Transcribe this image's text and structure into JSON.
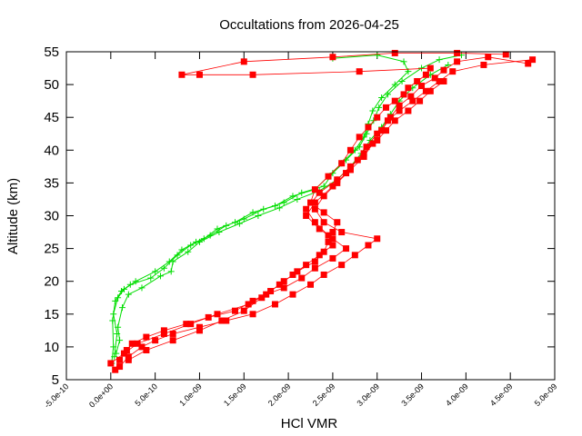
{
  "chart_data": {
    "type": "scatter",
    "title": "Occultations from 2026-04-25",
    "xlabel": "HCl VMR",
    "ylabel": "Altitude (km)",
    "xlim": [
      -5e-10,
      5e-09
    ],
    "ylim": [
      5,
      55
    ],
    "x_ticks": [
      -5e-10,
      0.0,
      5e-10,
      1e-09,
      1.5e-09,
      2e-09,
      2.5e-09,
      3e-09,
      3.5e-09,
      4e-09,
      4.5e-09,
      5e-09
    ],
    "x_tick_labels": [
      "-5.0e-10",
      "0.0e+00",
      "5.0e-10",
      "1.0e-09",
      "1.5e-09",
      "2.0e-09",
      "2.5e-09",
      "3.0e-09",
      "3.5e-09",
      "4.0e-09",
      "4.5e-09",
      "5.0e-09"
    ],
    "y_ticks": [
      5,
      10,
      15,
      20,
      25,
      30,
      35,
      40,
      45,
      50,
      55
    ],
    "y_tick_labels": [
      "5",
      "10",
      "15",
      "20",
      "25",
      "30",
      "35",
      "40",
      "45",
      "50",
      "55"
    ],
    "grid": false,
    "legend": "none",
    "series": [
      {
        "color": "#00dd00",
        "marker": "plus",
        "profiles": [
          {
            "x": [
              1e-11,
              3e-11,
              2e-11,
              5e-11,
              1.2e-10,
              2.2e-10,
              4.5e-10,
              6e-10,
              7.5e-10,
              9e-10,
              1.05e-09,
              1.2e-09,
              1.4e-09,
              1.6e-09,
              1.85e-09,
              2.05e-09,
              2.3e-09,
              2.45e-09,
              2.6e-09,
              2.75e-09,
              2.85e-09,
              2.9e-09,
              2.95e-09,
              3.05e-09,
              3.2e-09,
              3.35e-09,
              3.3e-09,
              3e-09,
              2.5e-09
            ],
            "y": [
              7.5,
              10,
              14,
              17,
              18.5,
              19.5,
              20.5,
              22,
              24,
              25.5,
              26.5,
              28,
              29,
              30.5,
              31.5,
              33,
              34,
              36,
              38,
              40,
              42,
              44,
              46,
              48,
              50,
              52,
              53.5,
              54.5,
              54
            ]
          },
          {
            "x": [
              4e-11,
              7e-11,
              3e-11,
              8e-11,
              1.5e-10,
              2.8e-10,
              5e-10,
              6.6e-10,
              8e-10,
              9.6e-10,
              1.12e-09,
              1.3e-09,
              1.5e-09,
              1.72e-09,
              1.95e-09,
              2.15e-09,
              2.4e-09,
              2.5e-09,
              2.65e-09,
              2.8e-09,
              2.88e-09,
              2.96e-09,
              3.02e-09,
              3.12e-09,
              3.28e-09,
              3.5e-09,
              3.7e-09,
              3.95e-09
            ],
            "y": [
              8.5,
              12,
              15,
              17.5,
              18.8,
              20,
              21.5,
              23,
              24.8,
              26,
              27,
              28.5,
              29.5,
              31,
              32,
              33.5,
              34.5,
              36.5,
              38.5,
              40.5,
              42.5,
              44.5,
              46.5,
              48.5,
              50.5,
              52.5,
              53.8,
              54.5
            ]
          },
          {
            "x": [
              6e-11,
              1e-10,
              8e-11,
              1.3e-10,
              2e-10,
              3.5e-10,
              5.6e-10,
              6.8e-10,
              7e-10,
              8.7e-10,
              1e-09,
              1.22e-09,
              1.45e-09,
              1.66e-09,
              1.9e-09,
              2.1e-09,
              2.35e-09,
              2.55e-09,
              2.7e-09,
              2.82e-09,
              2.92e-09,
              3.05e-09,
              3.15e-09,
              3.25e-09,
              3.4e-09,
              3.6e-09,
              3.8e-09
            ],
            "y": [
              9,
              11,
              13,
              16,
              18,
              19,
              20.8,
              21.5,
              23,
              24.5,
              26,
              27.5,
              28.8,
              30,
              31.2,
              32.5,
              33.8,
              35.5,
              37.5,
              39.5,
              41.5,
              43.5,
              45.5,
              47.5,
              49.5,
              51.5,
              53
            ]
          }
        ]
      },
      {
        "color": "#ff0000",
        "marker": "square",
        "profiles": [
          {
            "x": [
              5e-11,
              1e-10,
              1.8e-10,
              2.4e-10,
              4e-10,
              6e-10,
              8.5e-10,
              1.1e-09,
              1.4e-09,
              1.6e-09,
              1.8e-09,
              1.95e-09,
              2.1e-09,
              2.3e-09,
              2.4e-09,
              2.45e-09,
              2.5e-09,
              2.55e-09,
              2.4e-09,
              2.25e-09,
              2.3e-09,
              2.45e-09,
              2.6e-09,
              2.7e-09,
              2.8e-09,
              2.9e-09,
              3e-09,
              3.1e-09,
              3.2e-09,
              3.3e-09,
              3.35e-09,
              3.45e-09,
              3.55e-09,
              3.6e-09,
              2.8e-09,
              1.6e-09,
              1e-09,
              8e-10,
              1.5e-09,
              2.5e-09,
              3.2e-09,
              3.9e-09,
              4.45e-09
            ],
            "y": [
              6.5,
              8,
              9.5,
              10.5,
              11.5,
              12.5,
              13.5,
              14.5,
              15.5,
              17,
              18.5,
              20,
              21.5,
              23,
              24.5,
              26,
              27.5,
              29,
              30.5,
              32,
              34,
              36,
              38,
              40,
              42,
              43.5,
              45,
              46.5,
              47.5,
              48.5,
              49.5,
              50.5,
              51.5,
              52.5,
              52,
              51.5,
              51.5,
              51.5,
              53.5,
              54.2,
              54.8,
              54.8,
              54.6
            ]
          },
          {
            "x": [
              1e-10,
              2e-10,
              3.5e-10,
              5e-10,
              7e-10,
              1e-09,
              1.3e-09,
              1.6e-09,
              1.85e-09,
              2.05e-09,
              2.25e-09,
              2.4e-09,
              2.6e-09,
              2.75e-09,
              2.9e-09,
              3e-09,
              2.6e-09,
              2.4e-09,
              2.3e-09,
              2.4e-09,
              2.55e-09,
              2.7e-09,
              2.85e-09,
              2.95e-09,
              3.05e-09,
              3.15e-09,
              3.25e-09,
              3.38e-09,
              3.5e-09,
              3.65e-09,
              3.75e-09,
              3.9e-09,
              4.25e-09,
              4.7e-09
            ],
            "y": [
              7,
              8.5,
              10,
              11,
              12,
              13,
              14,
              15,
              16.5,
              18,
              19.5,
              21,
              22.5,
              24,
              25.5,
              26.5,
              27.5,
              29,
              31,
              33,
              35,
              37,
              39,
              41,
              43,
              45,
              46.8,
              48.2,
              49.8,
              51,
              52.2,
              53.5,
              54.2,
              53.2
            ]
          },
          {
            "x": [
              0.0,
              1.5e-10,
              3e-10,
              6e-10,
              9e-10,
              1.2e-09,
              1.55e-09,
              1.75e-09,
              1.95e-09,
              2.15e-09,
              2.3e-09,
              2.5e-09,
              2.65e-09,
              2.5e-09,
              2.35e-09,
              2.2e-09,
              2.3e-09,
              2.5e-09,
              2.65e-09,
              2.78e-09,
              2.88e-09,
              3e-09,
              3.12e-09,
              3.25e-09,
              3.4e-09,
              3.55e-09,
              3.7e-09,
              3.85e-09,
              4.2e-09,
              4.75e-09
            ],
            "y": [
              7.5,
              9,
              10.5,
              12,
              13.5,
              15,
              16.5,
              18,
              19,
              20.5,
              22,
              23.5,
              25,
              26.5,
              28,
              30,
              32,
              34.5,
              36.5,
              38.5,
              40.5,
              42.5,
              44.5,
              46,
              47.5,
              49,
              50.5,
              52,
              53,
              53.8
            ]
          },
          {
            "x": [
              2e-10,
              4e-10,
              7e-10,
              1e-09,
              1.25e-09,
              1.5e-09,
              1.7e-09,
              1.9e-09,
              2.05e-09,
              2.2e-09,
              2.35e-09,
              2.5e-09,
              2.45e-09,
              2.3e-09,
              2.2e-09,
              2.35e-09,
              2.55e-09,
              2.7e-09,
              2.85e-09,
              3e-09,
              3.1e-09,
              3.2e-09,
              3.35e-09,
              3.48e-09,
              3.6e-09,
              3.75e-09
            ],
            "y": [
              8,
              9.5,
              11,
              12.5,
              14,
              15.5,
              17.5,
              19.5,
              21,
              22.5,
              24,
              25.5,
              27,
              29,
              31,
              33.5,
              35.5,
              37.5,
              39.5,
              41.5,
              43,
              44.5,
              46,
              47.5,
              49,
              50.5
            ]
          }
        ]
      }
    ]
  }
}
